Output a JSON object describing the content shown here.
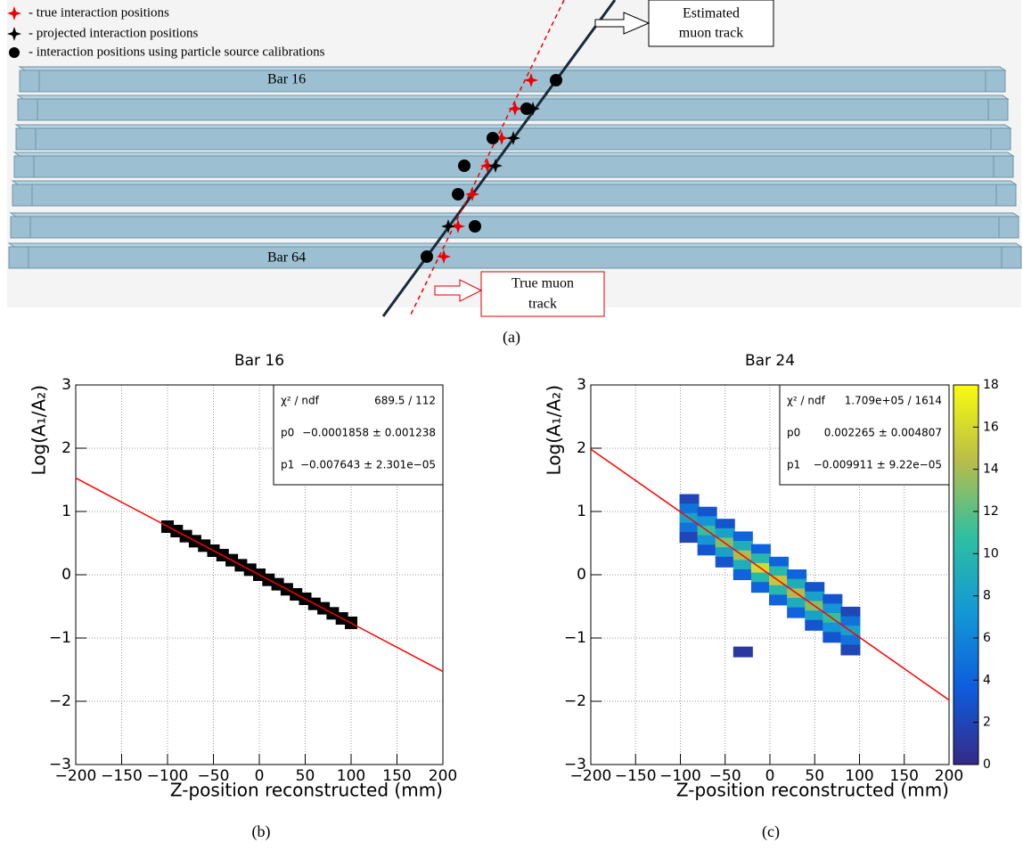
{
  "figure": {
    "captions": [
      "(a)",
      "(b)",
      "(c)"
    ]
  },
  "diagram": {
    "legend": [
      "- true interaction positions",
      "- projected interaction positions",
      "- interaction positions using particle source calibrations"
    ],
    "bar_labels": [
      "Bar 16",
      "Bar 64"
    ],
    "callouts": [
      [
        "Estimated",
        "muon track"
      ],
      [
        "True muon",
        "track"
      ]
    ]
  },
  "chart_data": [
    {
      "type": "scatter",
      "title": "Bar 16",
      "x_label": "Z-position reconstructed (mm)",
      "y_label": "Log(A₁/A₂)",
      "xlim": [
        -200,
        200
      ],
      "ylim": [
        -3,
        3
      ],
      "xticks": [
        {
          "value": -200,
          "label": "−200"
        },
        {
          "value": -150,
          "label": "−150"
        },
        {
          "value": -100,
          "label": "−100"
        },
        {
          "value": -50,
          "label": "−50"
        },
        0,
        50,
        100,
        150,
        200
      ],
      "yticks": [
        {
          "value": -3,
          "label": "−3"
        },
        {
          "value": -2,
          "label": "−2"
        },
        {
          "value": -1,
          "label": "−1"
        },
        0,
        1,
        2,
        3
      ],
      "grid": true,
      "color": "#000000",
      "x": [
        -100,
        -90,
        -80,
        -70,
        -60,
        -50,
        -40,
        -30,
        -20,
        -10,
        0,
        10,
        20,
        30,
        40,
        50,
        60,
        70,
        80,
        90,
        100
      ],
      "values": [
        0.76,
        0.69,
        0.61,
        0.53,
        0.46,
        0.38,
        0.31,
        0.23,
        0.15,
        0.08,
        0.0,
        -0.08,
        -0.15,
        -0.23,
        -0.31,
        -0.38,
        -0.46,
        -0.53,
        -0.61,
        -0.69,
        -0.76
      ],
      "fit": {
        "x": [
          -200,
          200
        ],
        "values": [
          1.529,
          -1.529
        ],
        "color": "#ff0000"
      },
      "stats": [
        {
          "name": "χ² / ndf",
          "value": "689.5 / 112"
        },
        {
          "name": "p0",
          "value": "−0.0001858 ± 0.001238"
        },
        {
          "name": "p1",
          "value": "−0.007643 ± 2.301e−05"
        }
      ]
    },
    {
      "type": "heatmap",
      "title": "Bar 24",
      "x_label": "Z-position reconstructed (mm)",
      "y_label": "Log(A₁/A₂)",
      "xlim": [
        -200,
        200
      ],
      "ylim": [
        -3,
        3
      ],
      "zlim": [
        0,
        18
      ],
      "xticks": [
        {
          "value": -200,
          "label": "−200"
        },
        {
          "value": -150,
          "label": "−150"
        },
        {
          "value": -100,
          "label": "−100"
        },
        {
          "value": -50,
          "label": "−50"
        },
        0,
        50,
        100,
        150,
        200
      ],
      "yticks": [
        {
          "value": -3,
          "label": "−3"
        },
        {
          "value": -2,
          "label": "−2"
        },
        {
          "value": -1,
          "label": "−1"
        },
        0,
        1,
        2,
        3
      ],
      "zticks": [
        0,
        2,
        4,
        6,
        8,
        10,
        12,
        14,
        16,
        18
      ],
      "grid": true,
      "x": [
        -90,
        -90,
        -90,
        -90,
        -90,
        -70,
        -70,
        -70,
        -70,
        -70,
        -50,
        -50,
        -50,
        -50,
        -50,
        -30,
        -30,
        -30,
        -30,
        -30,
        -10,
        -10,
        -10,
        -10,
        -10,
        10,
        10,
        10,
        10,
        10,
        30,
        30,
        30,
        30,
        30,
        50,
        50,
        50,
        50,
        50,
        70,
        70,
        70,
        70,
        70,
        90,
        90,
        90,
        90,
        90,
        -30
      ],
      "y": [
        1.19,
        1.04,
        0.89,
        0.74,
        0.59,
        0.99,
        0.84,
        0.69,
        0.54,
        0.39,
        0.8,
        0.65,
        0.5,
        0.35,
        0.2,
        0.6,
        0.45,
        0.3,
        0.15,
        0.0,
        0.4,
        0.25,
        0.1,
        -0.05,
        -0.2,
        0.2,
        0.05,
        -0.1,
        -0.25,
        -0.4,
        0.0,
        -0.15,
        -0.3,
        -0.45,
        -0.6,
        -0.2,
        -0.35,
        -0.5,
        -0.65,
        -0.8,
        -0.39,
        -0.54,
        -0.69,
        -0.84,
        -0.99,
        -0.59,
        -0.74,
        -0.89,
        -1.04,
        -1.19,
        -1.22
      ],
      "values": [
        2,
        5,
        8,
        5,
        2,
        3,
        7,
        11,
        7,
        3,
        3,
        8,
        13,
        8,
        3,
        4,
        9,
        14,
        9,
        4,
        4,
        10,
        16,
        10,
        4,
        4,
        10,
        15,
        10,
        4,
        4,
        9,
        14,
        9,
        4,
        3,
        8,
        13,
        8,
        3,
        3,
        7,
        11,
        7,
        3,
        2,
        5,
        8,
        5,
        2,
        1
      ],
      "fit": {
        "x": [
          -200,
          200
        ],
        "values": [
          1.985,
          -1.98
        ],
        "color": "#ff0000"
      },
      "stats": [
        {
          "name": "χ² / ndf",
          "value": "1.709e+05 / 1614"
        },
        {
          "name": "p0",
          "value": "0.002265 ± 0.004807"
        },
        {
          "name": "p1",
          "value": "−0.009911 ± 9.22e−05"
        }
      ]
    }
  ]
}
